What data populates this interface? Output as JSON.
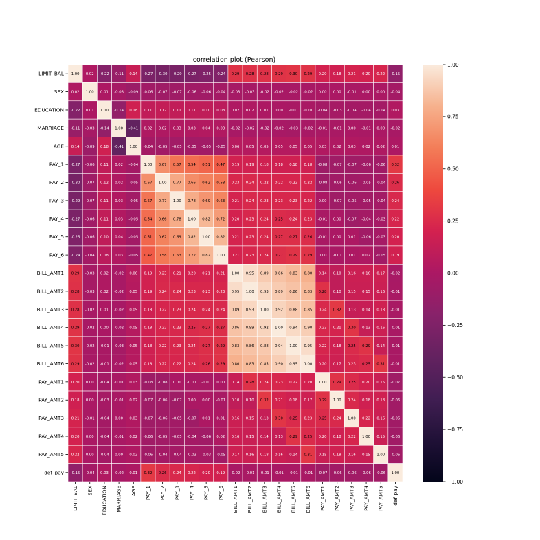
{
  "chart_data": {
    "type": "heatmap",
    "title": "correlation plot (Pearson)",
    "xlabel": "",
    "ylabel": "",
    "x_labels": [
      "LIMIT_BAL",
      "SEX",
      "EDUCATION",
      "MARRIAGE",
      "AGE",
      "PAY_1",
      "PAY_2",
      "PAY_3",
      "PAY_4",
      "PAY_5",
      "PAY_6",
      "BILL_AMT1",
      "BILL_AMT2",
      "BILL_AMT3",
      "BILL_AMT4",
      "BILL_AMT5",
      "BILL_AMT6",
      "PAY_AMT1",
      "PAY_AMT2",
      "PAY_AMT3",
      "PAY_AMT4",
      "PAY_AMT5",
      "def_pay"
    ],
    "y_labels": [
      "LIMIT_BAL",
      "SEX",
      "EDUCATION",
      "MARRIAGE",
      "AGE",
      "PAY_1",
      "PAY_2",
      "PAY_3",
      "PAY_4",
      "PAY_5",
      "PAY_6",
      "BILL_AMT1",
      "BILL_AMT2",
      "BILL_AMT3",
      "BILL_AMT4",
      "BILL_AMT5",
      "BILL_AMT6",
      "PAY_AMT1",
      "PAY_AMT2",
      "PAY_AMT3",
      "PAY_AMT4",
      "PAY_AMT5",
      "def_pay"
    ],
    "values": [
      [
        1.0,
        0.02,
        -0.22,
        -0.11,
        0.14,
        -0.27,
        -0.3,
        -0.29,
        -0.27,
        -0.25,
        -0.24,
        0.29,
        0.28,
        0.28,
        0.29,
        0.3,
        0.29,
        0.2,
        0.18,
        0.21,
        0.2,
        0.22,
        -0.15
      ],
      [
        0.02,
        1.0,
        0.01,
        -0.03,
        -0.09,
        -0.06,
        -0.07,
        -0.07,
        -0.06,
        -0.06,
        -0.04,
        -0.03,
        -0.03,
        -0.02,
        -0.02,
        -0.02,
        -0.02,
        -0.0,
        -0.0,
        -0.01,
        -0.0,
        -0.0,
        -0.04
      ],
      [
        -0.22,
        0.01,
        1.0,
        -0.14,
        0.18,
        0.11,
        0.12,
        0.11,
        0.11,
        0.1,
        0.08,
        0.02,
        0.02,
        0.01,
        -0.0,
        -0.01,
        -0.01,
        -0.04,
        -0.03,
        -0.04,
        -0.04,
        -0.04,
        0.03
      ],
      [
        -0.11,
        -0.03,
        -0.14,
        1.0,
        -0.41,
        0.02,
        0.02,
        0.03,
        0.03,
        0.04,
        0.03,
        -0.02,
        -0.02,
        -0.02,
        -0.02,
        -0.03,
        -0.02,
        -0.01,
        -0.01,
        -0.0,
        -0.01,
        -0.0,
        -0.02
      ],
      [
        0.14,
        -0.09,
        0.18,
        -0.41,
        1.0,
        -0.04,
        -0.05,
        -0.05,
        -0.05,
        -0.05,
        -0.05,
        0.06,
        0.05,
        0.05,
        0.05,
        0.05,
        0.05,
        0.03,
        0.02,
        0.03,
        0.02,
        0.02,
        0.01
      ],
      [
        -0.27,
        -0.06,
        0.11,
        0.02,
        -0.04,
        1.0,
        0.67,
        0.57,
        0.54,
        0.51,
        0.47,
        0.19,
        0.19,
        0.18,
        0.18,
        0.18,
        0.18,
        -0.08,
        -0.07,
        -0.07,
        -0.06,
        -0.06,
        0.32
      ],
      [
        -0.3,
        -0.07,
        0.12,
        0.02,
        -0.05,
        0.67,
        1.0,
        0.77,
        0.66,
        0.62,
        0.58,
        0.23,
        0.24,
        0.22,
        0.22,
        0.22,
        0.22,
        -0.08,
        -0.06,
        -0.06,
        -0.05,
        -0.04,
        0.26
      ],
      [
        -0.29,
        -0.07,
        0.11,
        0.03,
        -0.05,
        0.57,
        0.77,
        1.0,
        0.78,
        0.69,
        0.63,
        0.21,
        0.24,
        0.23,
        0.23,
        0.23,
        0.22,
        0.0,
        -0.07,
        -0.05,
        -0.05,
        -0.04,
        0.24
      ],
      [
        -0.27,
        -0.06,
        0.11,
        0.03,
        -0.05,
        0.54,
        0.66,
        0.78,
        1.0,
        0.82,
        0.72,
        0.2,
        0.23,
        0.24,
        0.25,
        0.24,
        0.23,
        -0.01,
        -0.0,
        -0.07,
        -0.04,
        -0.03,
        0.22
      ],
      [
        -0.25,
        -0.06,
        0.1,
        0.04,
        -0.05,
        0.51,
        0.62,
        0.69,
        0.82,
        1.0,
        0.82,
        0.21,
        0.23,
        0.24,
        0.27,
        0.27,
        0.26,
        -0.01,
        -0.0,
        0.01,
        -0.06,
        -0.03,
        0.2
      ],
      [
        -0.24,
        -0.04,
        0.08,
        0.03,
        -0.05,
        0.47,
        0.58,
        0.63,
        0.72,
        0.82,
        1.0,
        0.21,
        0.23,
        0.24,
        0.27,
        0.29,
        0.29,
        -0.0,
        -0.01,
        0.01,
        0.02,
        -0.05,
        0.19
      ],
      [
        0.29,
        -0.03,
        0.02,
        -0.02,
        0.06,
        0.19,
        0.23,
        0.21,
        0.2,
        0.21,
        0.21,
        1.0,
        0.95,
        0.89,
        0.86,
        0.83,
        0.8,
        0.14,
        0.1,
        0.16,
        0.16,
        0.17,
        -0.02
      ],
      [
        0.28,
        -0.03,
        0.02,
        -0.02,
        0.05,
        0.19,
        0.24,
        0.24,
        0.23,
        0.23,
        0.23,
        0.95,
        1.0,
        0.93,
        0.89,
        0.86,
        0.83,
        0.28,
        0.1,
        0.15,
        0.15,
        0.16,
        -0.01
      ],
      [
        0.28,
        -0.02,
        0.01,
        -0.02,
        0.05,
        0.18,
        0.22,
        0.23,
        0.24,
        0.24,
        0.24,
        0.89,
        0.93,
        1.0,
        0.92,
        0.88,
        0.85,
        0.24,
        0.32,
        0.13,
        0.14,
        0.18,
        -0.01
      ],
      [
        0.29,
        -0.02,
        -0.0,
        -0.02,
        0.05,
        0.18,
        0.22,
        0.23,
        0.25,
        0.27,
        0.27,
        0.86,
        0.89,
        0.92,
        1.0,
        0.94,
        0.9,
        0.23,
        0.21,
        0.3,
        0.13,
        0.16,
        -0.01
      ],
      [
        0.3,
        -0.02,
        -0.01,
        -0.03,
        0.05,
        0.18,
        0.22,
        0.23,
        0.24,
        0.27,
        0.29,
        0.83,
        0.86,
        0.88,
        0.94,
        1.0,
        0.95,
        0.22,
        0.18,
        0.25,
        0.29,
        0.14,
        -0.01
      ],
      [
        0.29,
        -0.02,
        -0.01,
        -0.02,
        0.05,
        0.18,
        0.22,
        0.22,
        0.24,
        0.26,
        0.29,
        0.8,
        0.83,
        0.85,
        0.9,
        0.95,
        1.0,
        0.2,
        0.17,
        0.23,
        0.25,
        0.31,
        -0.01
      ],
      [
        0.2,
        -0.0,
        -0.04,
        -0.01,
        0.03,
        -0.08,
        -0.08,
        0.0,
        -0.01,
        -0.01,
        -0.0,
        0.14,
        0.28,
        0.24,
        0.23,
        0.22,
        0.2,
        1.0,
        0.29,
        0.25,
        0.2,
        0.15,
        -0.07
      ],
      [
        0.18,
        -0.0,
        -0.03,
        -0.01,
        0.02,
        -0.07,
        -0.06,
        -0.07,
        -0.0,
        -0.0,
        -0.01,
        0.1,
        0.1,
        0.32,
        0.21,
        0.18,
        0.17,
        0.29,
        1.0,
        0.24,
        0.18,
        0.18,
        -0.06
      ],
      [
        0.21,
        -0.01,
        -0.04,
        -0.0,
        0.03,
        -0.07,
        -0.06,
        -0.05,
        -0.07,
        0.01,
        0.01,
        0.16,
        0.15,
        0.13,
        0.3,
        0.25,
        0.23,
        0.25,
        0.24,
        1.0,
        0.22,
        0.16,
        -0.06
      ],
      [
        0.2,
        -0.0,
        -0.04,
        -0.01,
        0.02,
        -0.06,
        -0.05,
        -0.05,
        -0.04,
        -0.06,
        0.02,
        0.16,
        0.15,
        0.14,
        0.13,
        0.29,
        0.25,
        0.2,
        0.18,
        0.22,
        1.0,
        0.15,
        -0.06
      ],
      [
        0.22,
        -0.0,
        -0.04,
        -0.0,
        0.02,
        -0.06,
        -0.04,
        -0.04,
        -0.03,
        -0.03,
        -0.05,
        0.17,
        0.16,
        0.18,
        0.16,
        0.14,
        0.31,
        0.15,
        0.18,
        0.16,
        0.15,
        1.0,
        -0.06
      ],
      [
        -0.15,
        -0.04,
        0.03,
        -0.02,
        0.01,
        0.32,
        0.26,
        0.24,
        0.22,
        0.2,
        0.19,
        -0.02,
        -0.01,
        -0.01,
        -0.01,
        -0.01,
        -0.01,
        -0.07,
        -0.06,
        -0.06,
        -0.06,
        -0.06,
        1.0
      ]
    ],
    "zlim": [
      -1,
      1
    ],
    "colorbar_ticks": [
      "−1.00",
      "−0.75",
      "−0.50",
      "−0.25",
      "0.00",
      "0.25",
      "0.50",
      "0.75",
      "1.00"
    ],
    "colormap": "rocket",
    "annotations": true,
    "grid": false,
    "legend": "colorbar-right"
  }
}
